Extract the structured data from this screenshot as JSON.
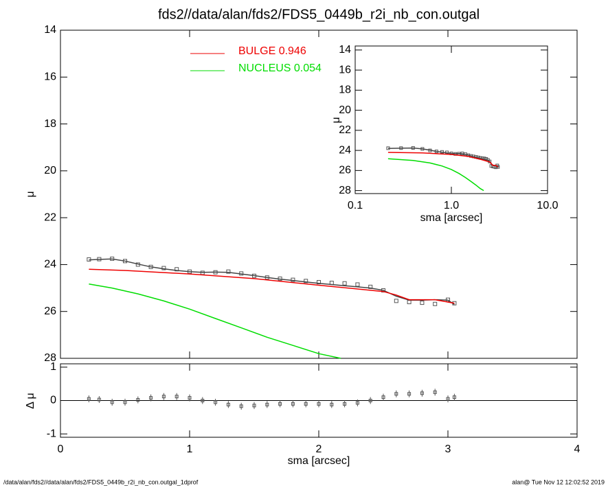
{
  "title": "fds2//data/alan/fds2/FDS5_0449b_r2i_nb_con.outgal",
  "footer_left": "/data/alan/fds2//data/alan/fds2/FDS5_0449b_r2i_nb_con.outgal_1dprof",
  "footer_right": "alan@  Tue Nov 12 12:02:52 2019",
  "chart_data": [
    {
      "type": "line",
      "ylabel": "μ",
      "xlim": [
        0,
        4
      ],
      "xticks": [
        0,
        1,
        2,
        3,
        4
      ],
      "ylim": [
        28,
        14
      ],
      "yticks": [
        14,
        16,
        18,
        20,
        22,
        24,
        26,
        28
      ],
      "series": [
        {
          "marker": "square",
          "color": "#555555",
          "x": [
            0.22,
            0.3,
            0.4,
            0.5,
            0.6,
            0.7,
            0.8,
            0.9,
            1.0,
            1.1,
            1.2,
            1.3,
            1.4,
            1.5,
            1.6,
            1.7,
            1.8,
            1.9,
            2.0,
            2.1,
            2.2,
            2.3,
            2.4,
            2.5,
            2.6,
            2.7,
            2.8,
            2.9,
            3.0,
            3.05
          ],
          "values": [
            23.78,
            23.77,
            23.75,
            23.85,
            24.0,
            24.1,
            24.15,
            24.2,
            24.3,
            24.35,
            24.33,
            24.3,
            24.38,
            24.48,
            24.55,
            24.6,
            24.65,
            24.7,
            24.75,
            24.78,
            24.8,
            24.85,
            24.95,
            25.1,
            25.55,
            25.6,
            25.63,
            25.68,
            25.5,
            25.65
          ]
        },
        {
          "color": "#444444",
          "x": [
            0.22,
            0.3,
            0.4,
            0.5,
            0.6,
            0.7,
            0.8,
            0.9,
            1.0,
            1.1,
            1.2,
            1.3,
            1.4,
            1.5,
            1.6,
            1.7,
            1.8,
            1.9,
            2.0,
            2.2,
            2.4,
            2.5,
            2.6,
            2.7,
            2.8,
            2.9,
            3.0,
            3.05
          ],
          "values": [
            23.8,
            23.78,
            23.76,
            23.85,
            23.98,
            24.1,
            24.18,
            24.25,
            24.3,
            24.33,
            24.32,
            24.33,
            24.4,
            24.47,
            24.55,
            24.62,
            24.68,
            24.74,
            24.8,
            24.9,
            25.0,
            25.1,
            25.35,
            25.52,
            25.52,
            25.5,
            25.52,
            25.7
          ]
        },
        {
          "name": "BULGE  0.946",
          "color": "#ee0000",
          "x": [
            0.22,
            0.5,
            1.0,
            1.5,
            2.0,
            2.5,
            2.6,
            2.7,
            2.9,
            3.05
          ],
          "values": [
            24.2,
            24.25,
            24.4,
            24.6,
            24.88,
            25.15,
            25.3,
            25.5,
            25.5,
            25.65
          ]
        },
        {
          "name": "NUCLEUS  0.054",
          "color": "#00dd00",
          "x": [
            0.22,
            0.4,
            0.6,
            0.8,
            1.0,
            1.2,
            1.4,
            1.6,
            1.8,
            2.0,
            2.17
          ],
          "values": [
            24.83,
            25.0,
            25.25,
            25.55,
            25.9,
            26.3,
            26.7,
            27.1,
            27.45,
            27.8,
            28.0
          ]
        }
      ]
    },
    {
      "type": "scatter",
      "xlabel": "sma [arcsec]",
      "ylabel": "Δ μ",
      "xlim": [
        0,
        4
      ],
      "xticks": [
        0,
        1,
        2,
        3,
        4
      ],
      "ylim": [
        -1.1,
        1.1
      ],
      "yticks": [
        -1,
        0,
        1
      ],
      "x": [
        0.22,
        0.3,
        0.4,
        0.5,
        0.6,
        0.7,
        0.8,
        0.9,
        1.0,
        1.1,
        1.2,
        1.3,
        1.4,
        1.5,
        1.6,
        1.7,
        1.8,
        1.9,
        2.0,
        2.1,
        2.2,
        2.3,
        2.4,
        2.5,
        2.6,
        2.7,
        2.8,
        2.9,
        3.0,
        3.05
      ],
      "values": [
        0.05,
        0.03,
        -0.05,
        -0.05,
        0.02,
        0.08,
        0.12,
        0.12,
        0.08,
        0.0,
        -0.05,
        -0.12,
        -0.17,
        -0.15,
        -0.12,
        -0.1,
        -0.1,
        -0.1,
        -0.1,
        -0.12,
        -0.1,
        -0.07,
        0.0,
        0.1,
        0.2,
        0.2,
        0.22,
        0.25,
        0.05,
        0.1
      ],
      "color": "#555555"
    },
    {
      "type": "inset",
      "xlabel": "sma [arcsec]",
      "ylabel": "μ",
      "xlog": true,
      "xlim": [
        0.1,
        10
      ],
      "xticks": [
        0.1,
        {
          "value": 1,
          "label": "1.0"
        },
        {
          "value": 10,
          "label": "10.0"
        }
      ],
      "ylim": [
        28.3,
        13.6
      ],
      "yticks": [
        14,
        16,
        18,
        20,
        22,
        24,
        26,
        28
      ]
    }
  ]
}
